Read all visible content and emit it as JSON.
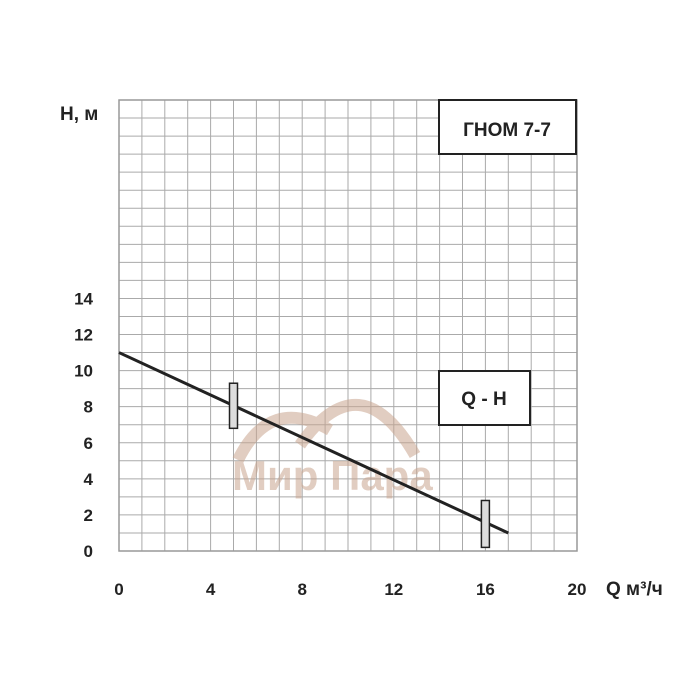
{
  "chart_data": {
    "type": "line",
    "title": "ГНОМ 7-7",
    "curve_label": "Q - H",
    "xlabel": "Q м³/ч",
    "ylabel": "H, м",
    "xlim": [
      0,
      20
    ],
    "ylim": [
      0,
      25
    ],
    "x_ticks": [
      0,
      4,
      8,
      12,
      16,
      20
    ],
    "y_ticks": [
      0,
      2,
      4,
      6,
      8,
      10,
      12,
      14
    ],
    "grid": true,
    "grid_step_x": 1,
    "grid_step_y": 1,
    "series": [
      {
        "x": [
          0,
          17
        ],
        "y": [
          11,
          1
        ],
        "color": "#222222"
      }
    ],
    "working_range_markers": [
      {
        "x": 5,
        "y_from": 6.8,
        "y_to": 9.3
      },
      {
        "x": 16,
        "y_from": 0.2,
        "y_to": 2.8
      }
    ]
  },
  "watermark": {
    "text": "Мир Пара",
    "color": "#c9a58f"
  }
}
